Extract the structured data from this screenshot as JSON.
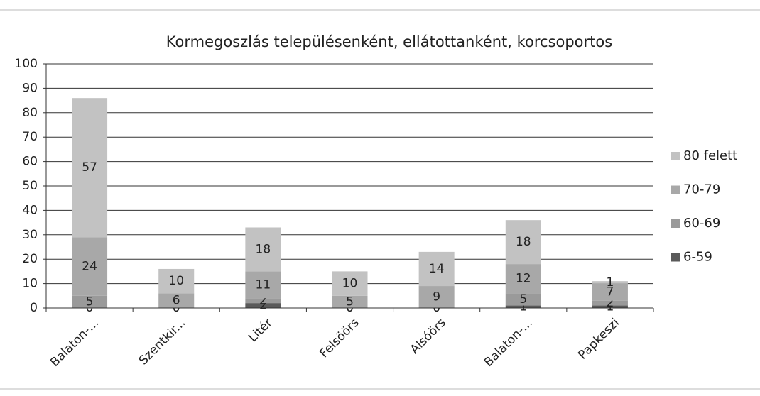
{
  "chart_data": {
    "type": "stacked_bar",
    "title": "Kormegoszlás településenként, ellátottanként, korcsoportos",
    "categories": [
      "Balaton-...",
      "Szentkir...",
      "Litér",
      "Felsöörs",
      "Alsóörs",
      "Balaton-...",
      "Papkeszi"
    ],
    "series": [
      {
        "name": "6-59",
        "color": "#5a5a5a",
        "values": [
          0,
          0,
          2,
          0,
          0,
          1,
          1
        ]
      },
      {
        "name": "60-69",
        "color": "#9a9a9a",
        "values": [
          5,
          0,
          2,
          0,
          0,
          5,
          2
        ]
      },
      {
        "name": "70-79",
        "color": "#a8a8a8",
        "values": [
          24,
          6,
          11,
          5,
          9,
          12,
          7
        ]
      },
      {
        "name": "80 felett",
        "color": "#c2c2c2",
        "values": [
          57,
          10,
          18,
          10,
          14,
          18,
          1
        ]
      }
    ],
    "ylim": [
      0,
      100
    ],
    "yticks": [
      0,
      10,
      20,
      30,
      40,
      50,
      60,
      70,
      80,
      90,
      100
    ],
    "grid": true,
    "legend": "right"
  }
}
